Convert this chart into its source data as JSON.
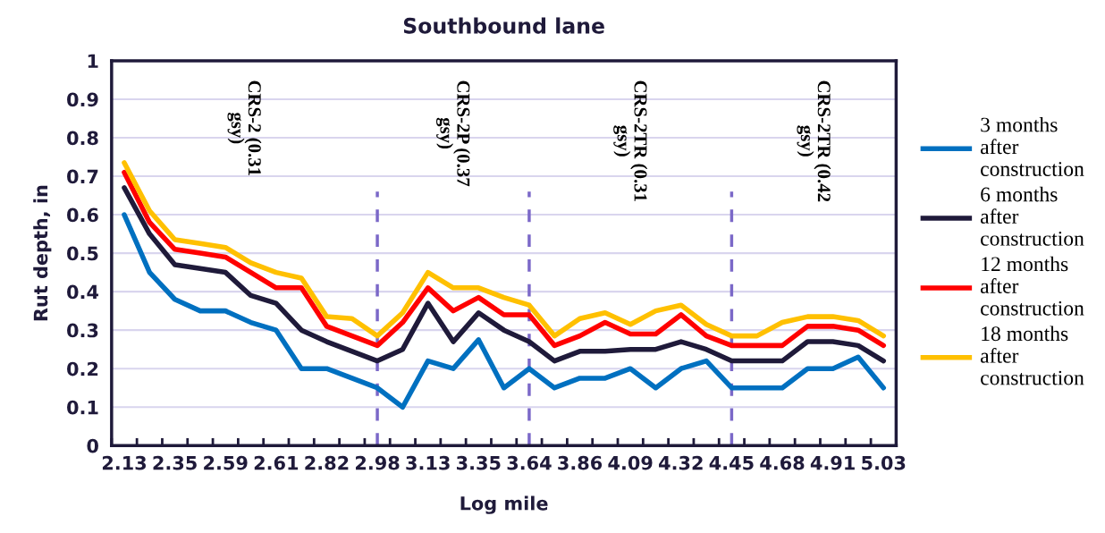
{
  "chart_data": {
    "type": "line",
    "title": "Southbound lane",
    "xlabel": "Log mile",
    "ylabel": "Rut depth, in",
    "categories": [
      "2.13",
      null,
      "2.35",
      null,
      "2.59",
      null,
      "2.61",
      null,
      "2.82",
      null,
      "2.98",
      null,
      "3.13",
      null,
      "3.35",
      null,
      "3.64",
      null,
      "3.86",
      null,
      "4.09",
      null,
      "4.32",
      null,
      "4.45",
      null,
      "4.68",
      null,
      "4.91",
      null,
      "5.03"
    ],
    "series": [
      {
        "name": "3 months after construction",
        "color": "#0070c0",
        "values": [
          0.6,
          0.45,
          0.38,
          0.35,
          0.35,
          0.32,
          0.3,
          0.2,
          0.2,
          0.175,
          0.15,
          0.1,
          0.22,
          0.2,
          0.275,
          0.15,
          0.2,
          0.15,
          0.175,
          0.175,
          0.2,
          0.15,
          0.2,
          0.22,
          0.15,
          0.15,
          0.15,
          0.2,
          0.2,
          0.23,
          0.15
        ]
      },
      {
        "name": "6 months after construction",
        "color": "#1f1a3a",
        "values": [
          0.67,
          0.55,
          0.47,
          0.46,
          0.45,
          0.39,
          0.37,
          0.3,
          0.27,
          0.245,
          0.22,
          0.25,
          0.37,
          0.27,
          0.345,
          0.3,
          0.27,
          0.22,
          0.245,
          0.245,
          0.25,
          0.25,
          0.27,
          0.25,
          0.22,
          0.22,
          0.22,
          0.27,
          0.27,
          0.26,
          0.22
        ]
      },
      {
        "name": "12 months after construction",
        "color": "#ff0000",
        "values": [
          0.71,
          0.58,
          0.51,
          0.5,
          0.49,
          0.45,
          0.41,
          0.41,
          0.31,
          0.285,
          0.26,
          0.32,
          0.41,
          0.35,
          0.385,
          0.34,
          0.34,
          0.26,
          0.285,
          0.32,
          0.29,
          0.29,
          0.34,
          0.285,
          0.26,
          0.26,
          0.26,
          0.31,
          0.31,
          0.3,
          0.26
        ]
      },
      {
        "name": "18 months after construction",
        "color": "#ffc000",
        "values": [
          0.735,
          0.61,
          0.535,
          0.525,
          0.515,
          0.475,
          0.45,
          0.435,
          0.335,
          0.33,
          0.285,
          0.345,
          0.45,
          0.41,
          0.41,
          0.385,
          0.365,
          0.285,
          0.33,
          0.345,
          0.315,
          0.35,
          0.365,
          0.315,
          0.285,
          0.285,
          0.32,
          0.335,
          0.335,
          0.325,
          0.285
        ]
      }
    ],
    "ylim": [
      0,
      1
    ],
    "yticks": [
      0,
      0.1,
      0.2,
      0.3,
      0.4,
      0.5,
      0.6,
      0.7,
      0.8,
      0.9,
      1
    ],
    "ref_lines": [
      {
        "axis": "x",
        "value": "2.98",
        "color": "#7b68c8",
        "line_style": "dashed"
      },
      {
        "axis": "x",
        "value": "3.64",
        "color": "#7b68c8",
        "line_style": "dashed"
      },
      {
        "axis": "x",
        "value": "4.45",
        "color": "#7b68c8",
        "line_style": "dashed"
      }
    ],
    "grid": "y",
    "legend": "right",
    "marker": "none",
    "line_style": "solid",
    "annotations": [
      "CRS-2 (0.31\ngsy)",
      "CRS-2P (0.37\ngsy)",
      "CRS-2TR (0.31\ngsy)",
      "CRS-2TR (0.42\ngsy)"
    ]
  }
}
